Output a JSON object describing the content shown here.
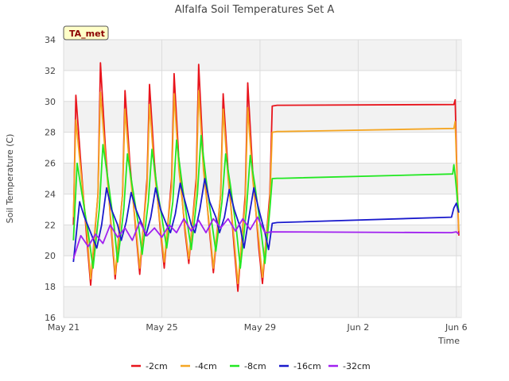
{
  "chart_data": {
    "type": "line",
    "title": "Alfalfa Soil Temperatures Set A",
    "xlabel": "Time",
    "ylabel": "Soil Temperature (C)",
    "site_label": "TA_met",
    "ylim": [
      16,
      34
    ],
    "yticks": [
      16,
      18,
      20,
      22,
      24,
      26,
      28,
      30,
      32,
      34
    ],
    "xlim": [
      0,
      16.2
    ],
    "xticks": [
      {
        "value": 0,
        "label": "May 21"
      },
      {
        "value": 4,
        "label": "May 25"
      },
      {
        "value": 8,
        "label": "May 29"
      },
      {
        "value": 12,
        "label": "Jun 2"
      },
      {
        "value": 16,
        "label": "Jun 6"
      }
    ],
    "series": [
      {
        "name": "-2cm",
        "color": "#e8141c",
        "x": [
          0.4,
          0.5,
          0.7,
          0.95,
          1.1,
          1.4,
          1.5,
          1.7,
          1.95,
          2.1,
          2.4,
          2.5,
          2.7,
          2.95,
          3.1,
          3.4,
          3.5,
          3.7,
          3.95,
          4.1,
          4.4,
          4.5,
          4.7,
          4.95,
          5.1,
          5.4,
          5.5,
          5.7,
          5.95,
          6.1,
          6.4,
          6.5,
          6.7,
          6.95,
          7.1,
          7.4,
          7.5,
          7.7,
          7.95,
          8.1,
          8.4,
          8.5,
          8.7,
          8.9,
          15.9,
          15.95,
          16.05,
          16.1
        ],
        "y": [
          22,
          30.4,
          26,
          21,
          18.1,
          24,
          32.5,
          27,
          21.5,
          18.5,
          24,
          30.7,
          26,
          21.5,
          18.8,
          25,
          31.1,
          26,
          21.5,
          19.2,
          25,
          31.8,
          26,
          21.5,
          19.5,
          25,
          32.4,
          26,
          21.5,
          18.9,
          24,
          30.5,
          25.5,
          20.5,
          17.7,
          24,
          31.2,
          25.5,
          20.5,
          18.2,
          24,
          29.7,
          29.75,
          29.75,
          29.8,
          30.1,
          23.5,
          21.3
        ]
      },
      {
        "name": "-4cm",
        "color": "#f5a623",
        "x": [
          0.4,
          0.5,
          0.7,
          0.95,
          1.1,
          1.4,
          1.5,
          1.7,
          1.95,
          2.1,
          2.4,
          2.5,
          2.7,
          2.95,
          3.1,
          3.4,
          3.5,
          3.7,
          3.95,
          4.1,
          4.4,
          4.5,
          4.7,
          4.95,
          5.1,
          5.4,
          5.5,
          5.7,
          5.95,
          6.1,
          6.4,
          6.5,
          6.7,
          6.95,
          7.1,
          7.4,
          7.5,
          7.7,
          7.95,
          8.1,
          8.4,
          8.5,
          8.7,
          8.9,
          15.9,
          15.95,
          16.05,
          16.1
        ],
        "y": [
          22.5,
          28.8,
          25.5,
          21.5,
          18.5,
          24,
          30.6,
          26.5,
          21.8,
          18.8,
          24,
          29.5,
          25.5,
          21.8,
          19.2,
          24.5,
          29.8,
          25.5,
          21.8,
          19.6,
          24.5,
          30.5,
          25.5,
          21.8,
          19.8,
          24.5,
          30.7,
          25.5,
          21.8,
          19.2,
          24,
          29.5,
          25,
          21,
          18.2,
          23.5,
          29.6,
          25,
          21,
          18.6,
          23.5,
          28,
          28.05,
          28.05,
          28.25,
          28.7,
          23.8,
          21.6
        ]
      },
      {
        "name": "-8cm",
        "color": "#22e822",
        "x": [
          0.4,
          0.55,
          0.75,
          1.0,
          1.2,
          1.45,
          1.6,
          1.8,
          2.05,
          2.2,
          2.45,
          2.6,
          2.8,
          3.05,
          3.2,
          3.45,
          3.6,
          3.8,
          4.05,
          4.2,
          4.45,
          4.6,
          4.8,
          5.05,
          5.2,
          5.45,
          5.6,
          5.8,
          6.05,
          6.2,
          6.45,
          6.6,
          6.8,
          7.05,
          7.2,
          7.45,
          7.6,
          7.8,
          8.05,
          8.2,
          8.4,
          8.5,
          8.7,
          8.9,
          15.85,
          15.9,
          15.95,
          16.05,
          16.1
        ],
        "y": [
          21,
          26,
          24,
          21.5,
          19.2,
          23,
          27.2,
          25,
          22,
          19.6,
          23,
          26.6,
          24.5,
          22,
          20.1,
          23.5,
          26.9,
          24.5,
          22,
          20.5,
          23.5,
          27.5,
          25,
          22,
          20.4,
          24,
          27.8,
          25,
          22,
          20.3,
          23.5,
          26.6,
          24.5,
          21.5,
          19.2,
          23,
          26.5,
          24.5,
          21.5,
          19.5,
          23,
          25,
          25.02,
          25.02,
          25.3,
          25.9,
          25.2,
          23.5,
          22.8
        ]
      },
      {
        "name": "-16cm",
        "color": "#1a1acc",
        "x": [
          0.4,
          0.65,
          0.85,
          1.1,
          1.35,
          1.55,
          1.75,
          1.95,
          2.2,
          2.35,
          2.55,
          2.75,
          2.95,
          3.2,
          3.35,
          3.55,
          3.75,
          3.95,
          4.2,
          4.35,
          4.55,
          4.75,
          4.95,
          5.2,
          5.35,
          5.55,
          5.75,
          5.95,
          6.2,
          6.35,
          6.55,
          6.75,
          6.95,
          7.2,
          7.35,
          7.55,
          7.75,
          7.95,
          8.2,
          8.35,
          8.5,
          8.7,
          15.8,
          15.9,
          16.0,
          16.1
        ],
        "y": [
          19.6,
          23.5,
          22.5,
          21.5,
          20.5,
          22,
          24.4,
          23,
          22,
          21,
          22.2,
          24.1,
          23,
          22,
          21.3,
          22.5,
          24.4,
          23,
          22,
          21.5,
          22.7,
          24.7,
          23.5,
          22,
          21.5,
          23,
          25,
          23.5,
          22.5,
          21.5,
          22.5,
          24.3,
          23,
          21.8,
          20.5,
          22.5,
          24.4,
          23,
          21.5,
          20.4,
          22.1,
          22.15,
          22.5,
          23.1,
          23.4,
          22.8
        ]
      },
      {
        "name": "-32cm",
        "color": "#a020f0",
        "x": [
          0.4,
          0.7,
          1.0,
          1.3,
          1.6,
          1.9,
          2.2,
          2.5,
          2.8,
          3.1,
          3.4,
          3.7,
          4.0,
          4.3,
          4.6,
          4.9,
          5.2,
          5.5,
          5.8,
          6.1,
          6.4,
          6.7,
          7.0,
          7.3,
          7.6,
          7.9,
          8.2,
          8.5,
          15.8,
          16.0,
          16.1
        ],
        "y": [
          19.8,
          21.3,
          20.6,
          21.4,
          20.8,
          22,
          21.2,
          21.8,
          21,
          22.2,
          21.3,
          21.8,
          21.2,
          22,
          21.5,
          22.4,
          21.6,
          22.3,
          21.5,
          22.4,
          21.8,
          22.4,
          21.6,
          22.4,
          21.7,
          22.5,
          21.5,
          21.55,
          21.5,
          21.55,
          21.4
        ]
      }
    ]
  }
}
